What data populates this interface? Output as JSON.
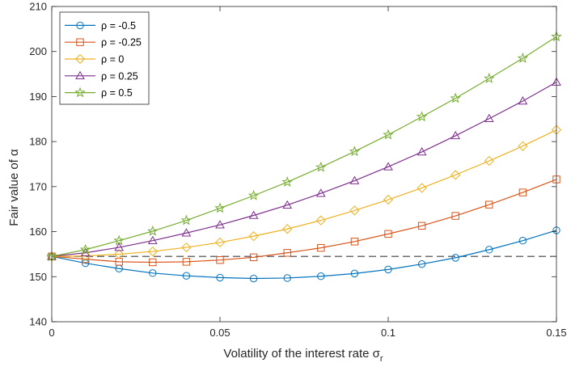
{
  "chart_data": {
    "type": "line",
    "xlabel": "Volatility of the interest rate σr",
    "xlabel_parts": {
      "main": "Volatility of the interest rate σ",
      "sub": "r"
    },
    "ylabel": "Fair value of α",
    "xlim": [
      0,
      0.15
    ],
    "ylim": [
      140,
      210
    ],
    "xticks": [
      0,
      0.05,
      0.1,
      0.15
    ],
    "xtick_labels": [
      "0",
      "0.05",
      "0.1",
      "0.15"
    ],
    "yticks": [
      140,
      150,
      160,
      170,
      180,
      190,
      200,
      210
    ],
    "ytick_labels": [
      "140",
      "150",
      "160",
      "170",
      "180",
      "190",
      "200",
      "210"
    ],
    "grid": false,
    "legend_position": "top-left",
    "x": [
      0,
      0.01,
      0.02,
      0.03,
      0.04,
      0.05,
      0.06,
      0.07,
      0.08,
      0.09,
      0.1,
      0.11,
      0.12,
      0.13,
      0.14,
      0.15
    ],
    "series": [
      {
        "name": "ρ = -0.5",
        "color": "#0072BD",
        "marker": "circle",
        "values": [
          154.5,
          153.0,
          151.8,
          150.8,
          150.2,
          149.8,
          149.6,
          149.7,
          150.1,
          150.7,
          151.6,
          152.8,
          154.2,
          156.0,
          158.0,
          160.3
        ]
      },
      {
        "name": "ρ = -0.25",
        "color": "#D95319",
        "marker": "square",
        "values": [
          154.5,
          153.9,
          153.3,
          153.2,
          153.3,
          153.7,
          154.3,
          155.3,
          156.4,
          157.8,
          159.5,
          161.3,
          163.5,
          166.0,
          168.7,
          171.6
        ]
      },
      {
        "name": "ρ = 0",
        "color": "#EDB120",
        "marker": "diamond",
        "values": [
          154.5,
          154.6,
          155.0,
          155.6,
          156.5,
          157.6,
          159.0,
          160.6,
          162.5,
          164.7,
          167.1,
          169.7,
          172.6,
          175.7,
          179.0,
          182.6
        ]
      },
      {
        "name": "ρ = 0.25",
        "color": "#7E2F8E",
        "marker": "triangle",
        "values": [
          154.5,
          155.3,
          156.5,
          158.0,
          159.7,
          161.5,
          163.6,
          165.9,
          168.5,
          171.3,
          174.4,
          177.7,
          181.3,
          185.1,
          189.0,
          193.2
        ]
      },
      {
        "name": "ρ = 0.5",
        "color": "#77AC30",
        "marker": "star",
        "values": [
          154.5,
          156.0,
          158.0,
          160.1,
          162.5,
          165.2,
          168.0,
          171.0,
          174.3,
          177.8,
          181.5,
          185.5,
          189.6,
          194.0,
          198.5,
          203.3
        ]
      }
    ],
    "reference_line": {
      "y": 154.5,
      "style": "dashed",
      "color": "#000000"
    }
  }
}
